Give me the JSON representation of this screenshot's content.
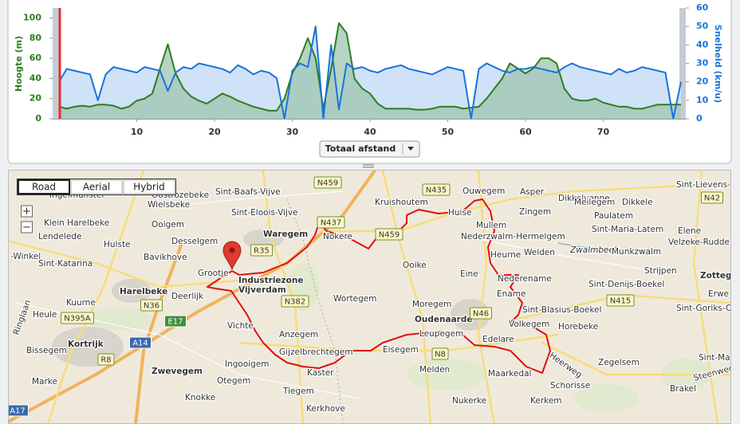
{
  "chart_data": {
    "type": "area",
    "ylabel": "Hoogte (m)",
    "y2label": "Snelheid (km/u)",
    "x": [
      0,
      1,
      2,
      3,
      4,
      5,
      6,
      7,
      8,
      9,
      10,
      11,
      12,
      13,
      14,
      15,
      16,
      17,
      18,
      19,
      20,
      21,
      22,
      23,
      24,
      25,
      26,
      27,
      28,
      29,
      30,
      31,
      32,
      33,
      34,
      35,
      36,
      37,
      38,
      39,
      40,
      41,
      42,
      43,
      44,
      45,
      46,
      47,
      48,
      49,
      50,
      51,
      52,
      53,
      54,
      55,
      56,
      57,
      58,
      59,
      60,
      61,
      62,
      63,
      64,
      65,
      66,
      67,
      68,
      69,
      70,
      71,
      72,
      73,
      74,
      75,
      76,
      77,
      78,
      79,
      80
    ],
    "series": [
      {
        "color": "#2e7d1f",
        "fill": "#9fc4ad",
        "values": [
          12,
          10,
          12,
          13,
          12,
          14,
          14,
          13,
          10,
          12,
          18,
          20,
          25,
          50,
          74,
          45,
          30,
          22,
          18,
          15,
          20,
          25,
          22,
          18,
          15,
          12,
          10,
          8,
          8,
          20,
          45,
          60,
          80,
          60,
          10,
          50,
          95,
          85,
          40,
          30,
          25,
          15,
          10,
          10,
          10,
          10,
          9,
          9,
          10,
          12,
          12,
          12,
          10,
          11,
          12,
          20,
          30,
          40,
          55,
          50,
          45,
          50,
          60,
          60,
          55,
          30,
          20,
          18,
          18,
          20,
          16,
          14,
          12,
          12,
          10,
          10,
          12,
          14,
          14,
          14,
          14
        ]
      },
      {
        "color": "#1a73d9",
        "fill": "#cfe2f8",
        "axis": "y2",
        "values": [
          20,
          27,
          26,
          25,
          24,
          10,
          24,
          28,
          27,
          26,
          25,
          28,
          27,
          26,
          15,
          25,
          28,
          27,
          30,
          29,
          28,
          27,
          25,
          29,
          27,
          24,
          26,
          25,
          22,
          0,
          26,
          30,
          28,
          50,
          0,
          40,
          5,
          30,
          27,
          28,
          26,
          25,
          27,
          28,
          29,
          27,
          26,
          25,
          24,
          26,
          28,
          27,
          26,
          0,
          27,
          30,
          28,
          26,
          25,
          27,
          27,
          28,
          27,
          26,
          25,
          28,
          30,
          28,
          27,
          26,
          25,
          24,
          27,
          25,
          26,
          28,
          27,
          26,
          25,
          0,
          20
        ]
      }
    ],
    "position": 0,
    "xlim": [
      0,
      80
    ],
    "xticks": [
      10,
      20,
      30,
      40,
      50,
      60,
      70
    ],
    "ylim": [
      0,
      110
    ],
    "yticks": [
      0,
      20,
      40,
      60,
      80,
      100
    ],
    "y2lim": [
      0,
      60
    ],
    "y2ticks": [
      0,
      10,
      20,
      30,
      40,
      50,
      60
    ]
  },
  "controls": {
    "dropdown": "Totaal afstand"
  },
  "map": {
    "view_buttons": [
      "Road",
      "Aerial",
      "Hybrid"
    ],
    "zoom": [
      "+",
      "−"
    ],
    "places": [
      "Ingelmunster",
      "Oostrozebeke",
      "Dikkelvenne",
      "Sint-Lievens-H",
      "Sint-Baafs-Vijve",
      "Kruishoutem",
      "Ouwegem",
      "Asper",
      "Wielsbeke",
      "Sint-Eloois-Vijve",
      "Huise",
      "Meilegem",
      "Dikkele",
      "Mullem",
      "Zingem",
      "Paulatem",
      "Klein Harelbeke",
      "Ooigem",
      "Waregem",
      "Nokere",
      "Nederzwalm-Hermelgem",
      "Sint-Maria-Latem",
      "Elene",
      "Lendelede",
      "Desselgem",
      "Hulste",
      "Heurne",
      "Welden",
      "Zwalmbeek",
      "Munkzwalm",
      "Velzeke-Rudde",
      "-Winkel",
      "Bavikhove",
      "Ooike",
      "Sint-Katarina",
      "Grootje",
      "Industriezone",
      "Vijverdam",
      "Eine",
      "Nederename",
      "Strijpen",
      "Zottegem",
      "Harelbeke",
      "Deerlijk",
      "Wortegem",
      "Sint-Denijs-Boekel",
      "Ename",
      "Erwe",
      "Sint-Goriks-Oud",
      "Kuurne",
      "Moregem",
      "Sint-Blasius-Boekel",
      "Heule",
      "Oudenaarde",
      "Volkegem",
      "Horebeke",
      "Vichte",
      "Leupegem",
      "Edelare",
      "Anzegem",
      "Kortrijk",
      "Bissegem",
      "Eisegem",
      "Gijzelbrechtegem",
      "Sint-Maria-Lie",
      "Zegelsem",
      "Ingooigem",
      "Melden",
      "Kaster",
      "Zwevegem",
      "Maarkedal",
      "Heerweg",
      "Marke",
      "Otegem",
      "Schorisse",
      "Tiegem",
      "Nukerke",
      "Kerkem",
      "Brakel",
      "Knokke",
      "Kerkhove",
      "Ringlaan",
      "Steenweg"
    ],
    "roads": [
      "N459",
      "N435",
      "N42",
      "N437",
      "N459",
      "R35",
      "N382",
      "N36",
      "N395A",
      "E17",
      "A14",
      "N46",
      "N415",
      "R8",
      "N8",
      "A17"
    ]
  }
}
